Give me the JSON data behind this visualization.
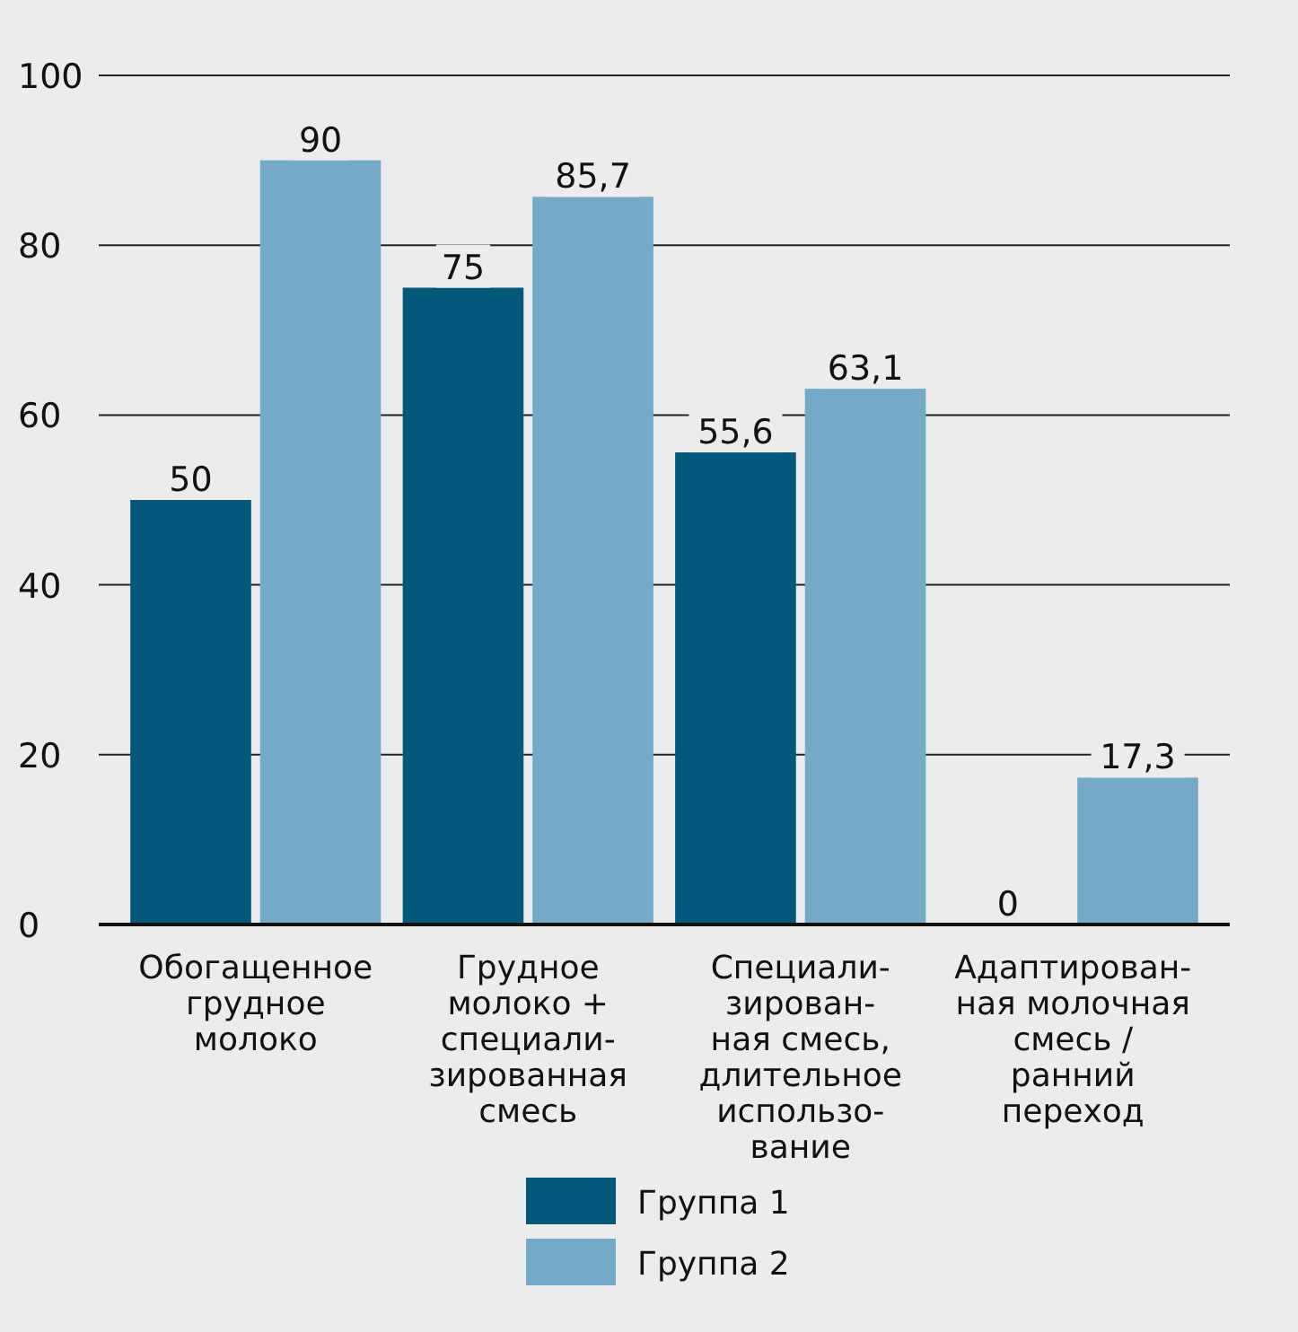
{
  "chart_data": {
    "type": "bar",
    "categories": [
      "Обогащенное\nгрудное\nмолоко",
      "Грудное\nмолоко +\nспециали-\nзированная\nсмесь",
      "Специали-\nзирован-\nная смесь,\nдлительное\nиспользо-\nвание",
      "Адаптирован-\nная молочная\nсмесь /\nранний\nпереход"
    ],
    "series": [
      {
        "name": "Группа 1",
        "color": "#03597c",
        "values": [
          50,
          75,
          55.6,
          0
        ],
        "value_labels": [
          "50",
          "75",
          "55,6",
          "0"
        ]
      },
      {
        "name": "Группа 2",
        "color": "#72aac7",
        "values": [
          90,
          85.7,
          63.1,
          17.3
        ],
        "value_labels": [
          "90",
          "85,7",
          "63,1",
          "17,3"
        ]
      }
    ],
    "ylim": [
      0,
      100
    ],
    "yticks": [
      0,
      20,
      40,
      60,
      80,
      100
    ],
    "grid": "y",
    "legend": "bottom"
  }
}
